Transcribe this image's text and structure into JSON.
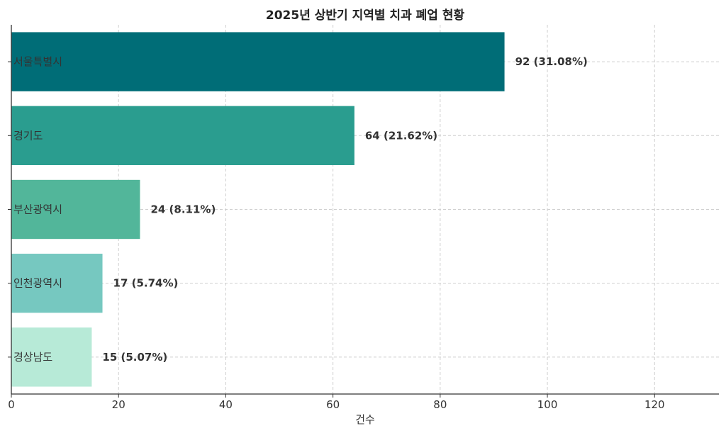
{
  "chart_data": {
    "type": "bar",
    "orientation": "horizontal",
    "title": "2025년 상반기 지역별 치과 폐업 현황",
    "xlabel": "건수",
    "ylabel": "",
    "categories": [
      "서울특별시",
      "경기도",
      "부산광역시",
      "인천광역시",
      "경상남도"
    ],
    "values": [
      92,
      64,
      24,
      17,
      15
    ],
    "data_labels": [
      "92 (31.08%)",
      "64 (21.62%)",
      "24 (8.11%)",
      "17 (5.74%)",
      "15 (5.07%)"
    ],
    "colors": [
      "#006d77",
      "#2a9d8f",
      "#52b69a",
      "#76c8c0",
      "#b7ead7"
    ],
    "xlim": [
      0,
      132
    ],
    "xticks": [
      0,
      20,
      40,
      60,
      80,
      100,
      120
    ],
    "grid": true
  }
}
